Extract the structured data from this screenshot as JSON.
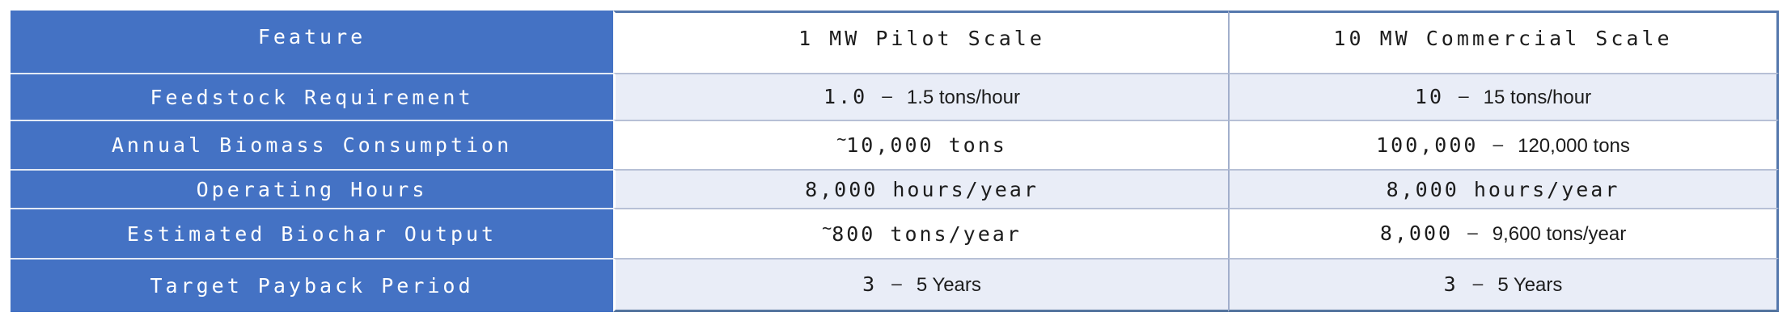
{
  "colors": {
    "feature_column_bg": "#4472C4",
    "row_alt_bg": "#E9EDF7",
    "row_bg": "#FFFFFF",
    "outer_border": "#54749E",
    "row_divider": "#B7C0D6",
    "column_divider": "#A2AFCC",
    "feature_text": "#FFFFFF",
    "value_text": "#1C1C1C"
  },
  "table": {
    "columns": [
      {
        "label": "Feature"
      },
      {
        "label": "1 MW Pilot Scale"
      },
      {
        "label": "10 MW Commercial Scale"
      }
    ],
    "rows": [
      {
        "feature": "Feedstock Requirement",
        "pilot": {
          "mono": "1.0",
          "dash": "–",
          "sans": "1.5 tons/hour"
        },
        "commercial": {
          "mono": "10",
          "dash": "–",
          "sans": "15 tons/hour"
        }
      },
      {
        "feature": "Annual Biomass Consumption",
        "pilot": {
          "tilde": "~",
          "mono": "10,000 tons"
        },
        "commercial": {
          "mono": "100,000",
          "dash": "–",
          "sans": "120,000 tons"
        }
      },
      {
        "feature": "Operating Hours",
        "pilot": {
          "mono": "8,000 hours/year"
        },
        "commercial": {
          "mono": "8,000 hours/year"
        }
      },
      {
        "feature": "Estimated Biochar Output",
        "pilot": {
          "tilde": "~",
          "mono": "800 tons/year"
        },
        "commercial": {
          "mono": "8,000",
          "dash": "–",
          "sans": "9,600 tons/year"
        }
      },
      {
        "feature": "Target Payback Period",
        "pilot": {
          "mono": "3",
          "dash": "–",
          "sans": "5 Years"
        },
        "commercial": {
          "mono": "3",
          "dash": "–",
          "sans": "5 Years"
        }
      }
    ]
  }
}
